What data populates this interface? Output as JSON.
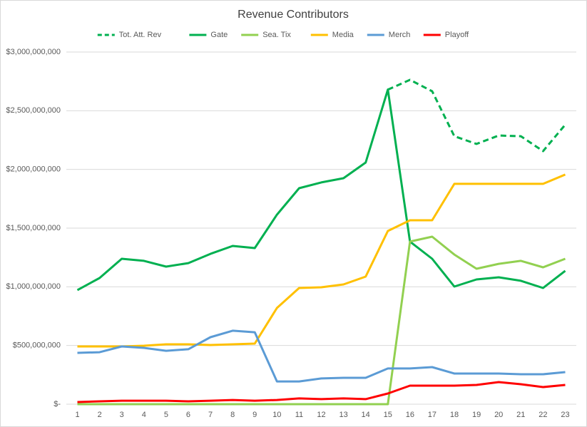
{
  "chart_data": {
    "type": "line",
    "title": "Revenue Contributors",
    "categories": [
      "1",
      "2",
      "3",
      "4",
      "5",
      "6",
      "7",
      "8",
      "9",
      "10",
      "11",
      "12",
      "13",
      "14",
      "15",
      "16",
      "17",
      "18",
      "19",
      "20",
      "21",
      "22",
      "23"
    ],
    "series": [
      {
        "name": "Tot. Att. Rev",
        "color": "#00b050",
        "dashed": true,
        "values": [
          null,
          null,
          null,
          null,
          null,
          null,
          null,
          null,
          null,
          null,
          null,
          null,
          null,
          null,
          2680000000,
          2763000000,
          2666000000,
          2283000000,
          2217000000,
          2289000000,
          2283000000,
          2156000000,
          2381000000
        ]
      },
      {
        "name": "Gate",
        "color": "#00b050",
        "values": [
          972000000,
          1075000000,
          1239000000,
          1221000000,
          1172000000,
          1202000000,
          1281000000,
          1348000000,
          1330000000,
          1615000000,
          1840000000,
          1889000000,
          1925000000,
          2059000000,
          2680000000,
          1385000000,
          1239000000,
          1002000000,
          1063000000,
          1081000000,
          1051000000,
          990000000,
          1136000000
        ]
      },
      {
        "name": "Sea. Tix",
        "color": "#92d050",
        "values": [
          0,
          0,
          0,
          0,
          0,
          0,
          0,
          0,
          0,
          0,
          0,
          0,
          0,
          0,
          0,
          1385000000,
          1427000000,
          1275000000,
          1154000000,
          1196000000,
          1221000000,
          1166000000,
          1239000000
        ]
      },
      {
        "name": "Media",
        "color": "#ffc000",
        "values": [
          492000000,
          492000000,
          492000000,
          498000000,
          510000000,
          510000000,
          504000000,
          510000000,
          516000000,
          820000000,
          990000000,
          996000000,
          1020000000,
          1087000000,
          1476000000,
          1567000000,
          1567000000,
          1877000000,
          1877000000,
          1877000000,
          1877000000,
          1877000000,
          1956000000
        ]
      },
      {
        "name": "Merch",
        "color": "#5b9bd5",
        "values": [
          437000000,
          443000000,
          492000000,
          480000000,
          455000000,
          468000000,
          571000000,
          626000000,
          613000000,
          194000000,
          194000000,
          219000000,
          225000000,
          225000000,
          304000000,
          304000000,
          316000000,
          261000000,
          261000000,
          261000000,
          255000000,
          255000000,
          273000000
        ]
      },
      {
        "name": "Playoff",
        "color": "#ff0000",
        "values": [
          18000000,
          24000000,
          30000000,
          30000000,
          30000000,
          24000000,
          30000000,
          36000000,
          30000000,
          36000000,
          49000000,
          43000000,
          49000000,
          43000000,
          91000000,
          158000000,
          158000000,
          158000000,
          164000000,
          188000000,
          170000000,
          146000000,
          164000000
        ]
      }
    ],
    "ylim": [
      0,
      3000000000
    ],
    "yticks": [
      {
        "value": 0,
        "label": "$-"
      },
      {
        "value": 500000000,
        "label": "$500,000,000"
      },
      {
        "value": 1000000000,
        "label": "$1,000,000,000"
      },
      {
        "value": 1500000000,
        "label": "$1,500,000,000"
      },
      {
        "value": 2000000000,
        "label": "$2,000,000,000"
      },
      {
        "value": 2500000000,
        "label": "$2,500,000,000"
      },
      {
        "value": 3000000000,
        "label": "$3,000,000,000"
      }
    ],
    "grid": true,
    "legend": "top"
  }
}
